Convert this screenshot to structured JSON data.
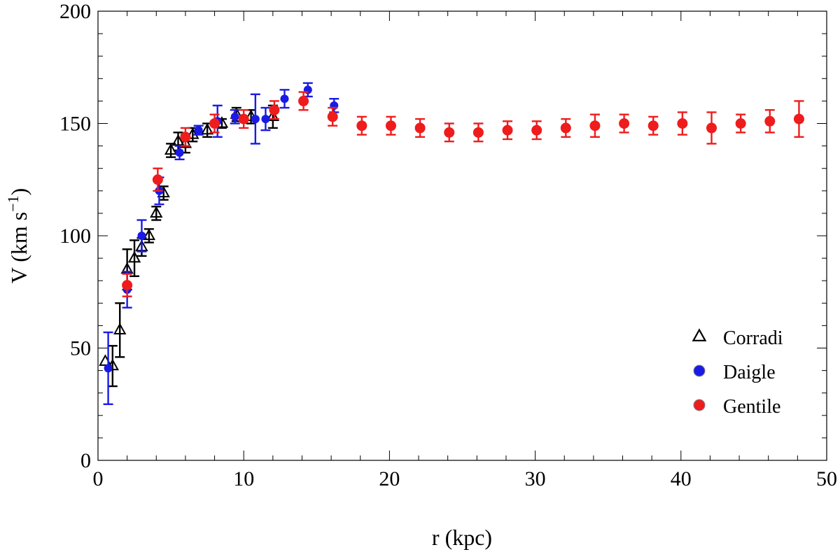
{
  "chart_data": {
    "type": "scatter",
    "title": "",
    "xlabel": "r  (kpc)",
    "ylabel": {
      "base": "V (km s",
      "superscript": "−1",
      "close": ")"
    },
    "xlim": [
      0,
      50
    ],
    "ylim": [
      0,
      200
    ],
    "xticks": [
      0,
      10,
      20,
      30,
      40,
      50
    ],
    "yticks": [
      0,
      50,
      100,
      150,
      200
    ],
    "x_tick_labels": [
      "0",
      "10",
      "20",
      "30",
      "40",
      "50"
    ],
    "y_tick_labels": [
      "0",
      "50",
      "100",
      "150",
      "200"
    ],
    "grid": false,
    "legend_position": "bottom-right",
    "colors": {
      "Corradi": "#000000",
      "Daigle": "#1a1ae6",
      "Gentile": "#ee1c1c"
    },
    "series": [
      {
        "name": "Corradi",
        "marker": "open-triangle",
        "points": [
          {
            "x": 0.5,
            "y": 44,
            "err": 0
          },
          {
            "x": 1.0,
            "y": 42,
            "err": 9
          },
          {
            "x": 1.5,
            "y": 58,
            "err": 12
          },
          {
            "x": 2.0,
            "y": 85,
            "err": 9
          },
          {
            "x": 2.5,
            "y": 90,
            "err": 8
          },
          {
            "x": 3.0,
            "y": 95,
            "err": 4
          },
          {
            "x": 3.5,
            "y": 100,
            "err": 3
          },
          {
            "x": 4.0,
            "y": 110,
            "err": 3
          },
          {
            "x": 4.5,
            "y": 119,
            "err": 3
          },
          {
            "x": 5.0,
            "y": 138,
            "err": 3
          },
          {
            "x": 5.5,
            "y": 142,
            "err": 4
          },
          {
            "x": 6.0,
            "y": 141,
            "err": 4
          },
          {
            "x": 6.5,
            "y": 145,
            "err": 3
          },
          {
            "x": 7.5,
            "y": 147,
            "err": 3
          },
          {
            "x": 8.5,
            "y": 150,
            "err": 2
          },
          {
            "x": 9.5,
            "y": 154,
            "err": 3
          },
          {
            "x": 10.5,
            "y": 153,
            "err": 3
          },
          {
            "x": 12.0,
            "y": 153,
            "err": 5
          }
        ]
      },
      {
        "name": "Daigle",
        "marker": "filled-circle",
        "points": [
          {
            "x": 0.7,
            "y": 41,
            "err": 16
          },
          {
            "x": 2.0,
            "y": 76,
            "err": 8
          },
          {
            "x": 3.0,
            "y": 100,
            "err": 7
          },
          {
            "x": 4.2,
            "y": 120,
            "err": 6
          },
          {
            "x": 5.6,
            "y": 137,
            "err": 3
          },
          {
            "x": 6.9,
            "y": 147,
            "err": 2
          },
          {
            "x": 8.2,
            "y": 151,
            "err": 7
          },
          {
            "x": 9.4,
            "y": 153,
            "err": 3
          },
          {
            "x": 10.8,
            "y": 152,
            "err": 11
          },
          {
            "x": 11.5,
            "y": 152,
            "err": 5
          },
          {
            "x": 12.8,
            "y": 161,
            "err": 4
          },
          {
            "x": 14.4,
            "y": 165,
            "err": 3
          },
          {
            "x": 16.2,
            "y": 158,
            "err": 3
          }
        ]
      },
      {
        "name": "Gentile",
        "marker": "filled-circle",
        "points": [
          {
            "x": 2.0,
            "y": 78,
            "err": 5
          },
          {
            "x": 4.1,
            "y": 125,
            "err": 5
          },
          {
            "x": 6.0,
            "y": 144,
            "err": 4
          },
          {
            "x": 8.0,
            "y": 150,
            "err": 4
          },
          {
            "x": 10.0,
            "y": 152,
            "err": 4
          },
          {
            "x": 12.1,
            "y": 156,
            "err": 4
          },
          {
            "x": 14.1,
            "y": 160,
            "err": 4
          },
          {
            "x": 16.1,
            "y": 153,
            "err": 4
          },
          {
            "x": 18.1,
            "y": 149,
            "err": 4
          },
          {
            "x": 20.1,
            "y": 149,
            "err": 4
          },
          {
            "x": 22.1,
            "y": 148,
            "err": 4
          },
          {
            "x": 24.1,
            "y": 146,
            "err": 4
          },
          {
            "x": 26.1,
            "y": 146,
            "err": 4
          },
          {
            "x": 28.1,
            "y": 147,
            "err": 4
          },
          {
            "x": 30.1,
            "y": 147,
            "err": 4
          },
          {
            "x": 32.1,
            "y": 148,
            "err": 4
          },
          {
            "x": 34.1,
            "y": 149,
            "err": 5
          },
          {
            "x": 36.1,
            "y": 150,
            "err": 4
          },
          {
            "x": 38.1,
            "y": 149,
            "err": 4
          },
          {
            "x": 40.1,
            "y": 150,
            "err": 5
          },
          {
            "x": 42.1,
            "y": 148,
            "err": 7
          },
          {
            "x": 44.1,
            "y": 150,
            "err": 4
          },
          {
            "x": 46.1,
            "y": 151,
            "err": 5
          },
          {
            "x": 48.1,
            "y": 152,
            "err": 8
          }
        ]
      }
    ]
  }
}
